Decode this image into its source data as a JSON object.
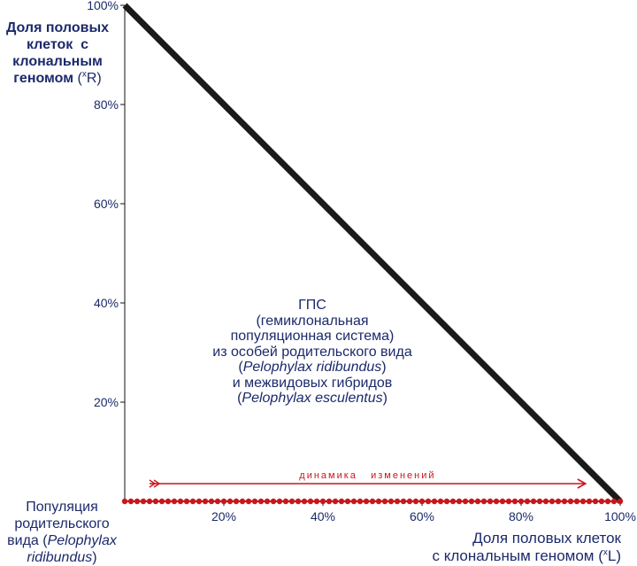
{
  "chart_data": {
    "type": "line",
    "title": "",
    "x_axis": {
      "label_line1": "Доля половых клеток",
      "label_line2": "с клональным геномом (",
      "label_sup": "x",
      "label_end": "L)",
      "ticks": [
        "20%",
        "40%",
        "60%",
        "80%",
        "100%"
      ],
      "tick_values": [
        20,
        40,
        60,
        80,
        100
      ],
      "range": [
        0,
        100
      ]
    },
    "y_axis": {
      "label_lines": [
        "Доля половых",
        "клеток  с",
        "клональным",
        "геномом"
      ],
      "label_sup_prefix": "(",
      "label_sup": "x",
      "label_sup_end": "R)",
      "ticks": [
        "20%",
        "40%",
        "60%",
        "80%",
        "100%"
      ],
      "tick_values": [
        20,
        40,
        60,
        80,
        100
      ],
      "range": [
        0,
        100
      ]
    },
    "series": [
      {
        "color": "#1a1a1a",
        "x": [
          0,
          100
        ],
        "y": [
          100,
          0
        ]
      }
    ],
    "baseline_dots": {
      "color": "#c8161d",
      "y": 0,
      "x_range": [
        0,
        100
      ]
    },
    "arrow": {
      "label": "динамика   изменений",
      "x_start": 5,
      "x_end": 93,
      "color": "#c8161d"
    },
    "origin_label": {
      "line1": "Популяция",
      "line2": "родительского",
      "line3_pre": "вида (",
      "line3_it": "Pelophylax",
      "line4_it": "ridibundus",
      "line4_post": ")"
    },
    "annotation": {
      "line1": "ГПС",
      "line2": "(гемиклональная",
      "line3": "популяционная система)",
      "line4": "из особей родительского вида",
      "line5_pre": "(",
      "line5_it": "Pelophylax ridibundus",
      "line5_post": ")",
      "line6": "и межвидовых гибридов",
      "line7_pre": "(",
      "line7_it": "Pelophylax esculentus",
      "line7_post": ")"
    }
  }
}
